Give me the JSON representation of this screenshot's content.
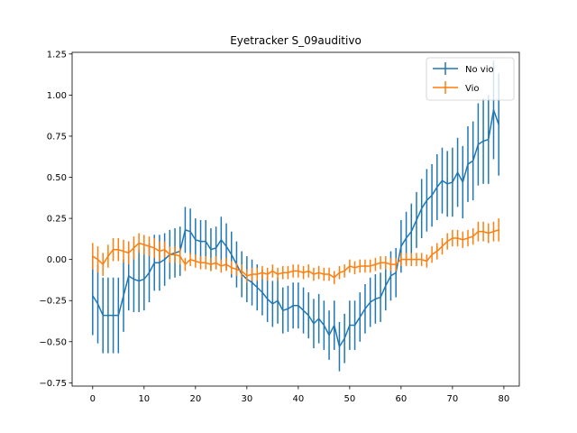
{
  "chart_data": {
    "type": "line",
    "title": "Eyetracker S_09auditivo",
    "xlabel": "",
    "ylabel": "",
    "xlim": [
      -4,
      83
    ],
    "ylim": [
      -0.77,
      1.26
    ],
    "xticks": [
      0,
      10,
      20,
      30,
      40,
      50,
      60,
      70,
      80
    ],
    "yticks": [
      -0.75,
      -0.5,
      -0.25,
      0.0,
      0.25,
      0.5,
      0.75,
      1.0,
      1.25
    ],
    "ytick_labels": [
      "−0.75",
      "−0.50",
      "−0.25",
      "0.00",
      "0.25",
      "0.50",
      "0.75",
      "1.00",
      "1.25"
    ],
    "grid": false,
    "legend_position": "top-right",
    "error_bars": true,
    "x": [
      0,
      1,
      2,
      3,
      4,
      5,
      6,
      7,
      8,
      9,
      10,
      11,
      12,
      13,
      14,
      15,
      16,
      17,
      18,
      19,
      20,
      21,
      22,
      23,
      24,
      25,
      26,
      27,
      28,
      29,
      30,
      31,
      32,
      33,
      34,
      35,
      36,
      37,
      38,
      39,
      40,
      41,
      42,
      43,
      44,
      45,
      46,
      47,
      48,
      49,
      50,
      51,
      52,
      53,
      54,
      55,
      56,
      57,
      58,
      59,
      60,
      61,
      62,
      63,
      64,
      65,
      66,
      67,
      68,
      69,
      70,
      71,
      72,
      73,
      74,
      75,
      76,
      77,
      78,
      79
    ],
    "series": [
      {
        "name": "No vio",
        "color": "#1f77b4",
        "values": [
          -0.22,
          -0.27,
          -0.34,
          -0.34,
          -0.34,
          -0.34,
          -0.22,
          -0.1,
          -0.12,
          -0.13,
          -0.12,
          -0.08,
          -0.02,
          -0.02,
          0.0,
          0.03,
          0.04,
          0.05,
          0.18,
          0.17,
          0.12,
          0.11,
          0.11,
          0.06,
          0.07,
          0.12,
          0.08,
          0.03,
          -0.03,
          -0.09,
          -0.12,
          -0.14,
          -0.17,
          -0.2,
          -0.24,
          -0.27,
          -0.25,
          -0.31,
          -0.3,
          -0.28,
          -0.28,
          -0.31,
          -0.34,
          -0.39,
          -0.36,
          -0.4,
          -0.46,
          -0.4,
          -0.53,
          -0.48,
          -0.4,
          -0.4,
          -0.35,
          -0.3,
          -0.26,
          -0.24,
          -0.23,
          -0.16,
          -0.1,
          -0.08,
          0.08,
          0.13,
          0.17,
          0.24,
          0.31,
          0.36,
          0.39,
          0.44,
          0.48,
          0.46,
          0.47,
          0.53,
          0.47,
          0.58,
          0.6,
          0.7,
          0.72,
          0.73,
          0.91,
          0.82
        ],
        "errors": [
          0.24,
          0.24,
          0.23,
          0.23,
          0.23,
          0.23,
          0.22,
          0.21,
          0.2,
          0.19,
          0.19,
          0.18,
          0.17,
          0.17,
          0.16,
          0.15,
          0.15,
          0.15,
          0.14,
          0.14,
          0.13,
          0.13,
          0.13,
          0.13,
          0.13,
          0.14,
          0.14,
          0.14,
          0.14,
          0.14,
          0.14,
          0.14,
          0.14,
          0.14,
          0.14,
          0.14,
          0.14,
          0.14,
          0.14,
          0.14,
          0.14,
          0.14,
          0.14,
          0.15,
          0.15,
          0.15,
          0.15,
          0.15,
          0.15,
          0.15,
          0.15,
          0.15,
          0.15,
          0.15,
          0.15,
          0.15,
          0.15,
          0.15,
          0.15,
          0.15,
          0.16,
          0.16,
          0.17,
          0.17,
          0.18,
          0.19,
          0.19,
          0.2,
          0.2,
          0.2,
          0.21,
          0.21,
          0.22,
          0.23,
          0.24,
          0.25,
          0.26,
          0.27,
          0.3,
          0.31
        ]
      },
      {
        "name": "Vio",
        "color": "#ff7f0e",
        "values": [
          0.02,
          0.0,
          -0.03,
          0.02,
          0.06,
          0.06,
          0.05,
          0.04,
          0.07,
          0.1,
          0.09,
          0.08,
          0.07,
          0.05,
          0.06,
          0.03,
          0.03,
          0.02,
          -0.03,
          0.0,
          -0.01,
          -0.02,
          -0.02,
          -0.03,
          -0.02,
          -0.04,
          -0.03,
          -0.05,
          -0.06,
          -0.07,
          -0.1,
          -0.09,
          -0.09,
          -0.08,
          -0.09,
          -0.07,
          -0.09,
          -0.08,
          -0.08,
          -0.07,
          -0.07,
          -0.08,
          -0.07,
          -0.09,
          -0.08,
          -0.09,
          -0.09,
          -0.11,
          -0.08,
          -0.07,
          -0.04,
          -0.05,
          -0.04,
          -0.04,
          -0.04,
          -0.03,
          -0.02,
          -0.02,
          -0.03,
          -0.03,
          0.0,
          0.0,
          0.0,
          0.0,
          0.0,
          -0.01,
          0.03,
          0.05,
          0.08,
          0.11,
          0.13,
          0.13,
          0.12,
          0.13,
          0.14,
          0.17,
          0.17,
          0.16,
          0.17,
          0.18
        ],
        "errors": [
          0.08,
          0.08,
          0.07,
          0.07,
          0.07,
          0.07,
          0.07,
          0.07,
          0.07,
          0.06,
          0.06,
          0.06,
          0.06,
          0.06,
          0.05,
          0.05,
          0.05,
          0.05,
          0.04,
          0.04,
          0.04,
          0.04,
          0.04,
          0.04,
          0.04,
          0.04,
          0.04,
          0.04,
          0.04,
          0.04,
          0.04,
          0.04,
          0.04,
          0.04,
          0.04,
          0.04,
          0.04,
          0.04,
          0.04,
          0.04,
          0.04,
          0.04,
          0.04,
          0.04,
          0.04,
          0.04,
          0.04,
          0.04,
          0.04,
          0.04,
          0.04,
          0.04,
          0.04,
          0.04,
          0.04,
          0.04,
          0.04,
          0.04,
          0.04,
          0.04,
          0.04,
          0.04,
          0.04,
          0.04,
          0.04,
          0.04,
          0.05,
          0.05,
          0.05,
          0.05,
          0.05,
          0.05,
          0.05,
          0.05,
          0.05,
          0.06,
          0.06,
          0.06,
          0.06,
          0.07
        ]
      }
    ]
  }
}
